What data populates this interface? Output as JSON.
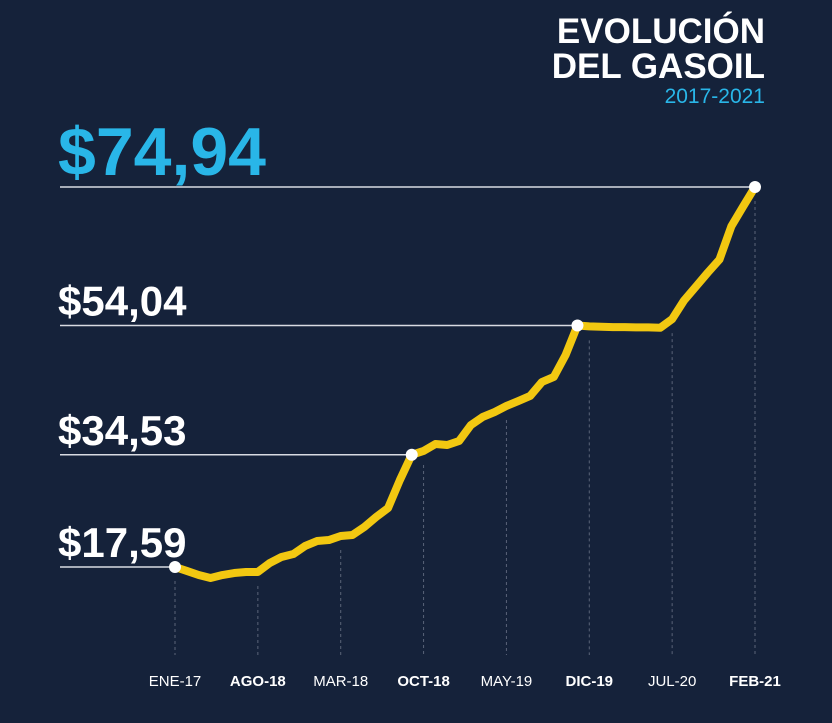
{
  "chart_data": {
    "type": "line",
    "title": [
      "EVOLUCIÓN",
      "DEL GASOIL"
    ],
    "subtitle": "2017-2021",
    "categories": [
      "ENE-17",
      null,
      null,
      null,
      null,
      null,
      null,
      "AGO-18",
      null,
      null,
      null,
      null,
      null,
      null,
      "MAR-18",
      null,
      null,
      null,
      null,
      null,
      null,
      "OCT-18",
      null,
      null,
      null,
      null,
      null,
      null,
      "MAY-19",
      null,
      null,
      null,
      null,
      null,
      null,
      "DIC-19",
      null,
      null,
      null,
      null,
      null,
      null,
      "JUL-20",
      null,
      null,
      null,
      null,
      null,
      null,
      "FEB-21"
    ],
    "series": [
      {
        "name": null,
        "color": "#f2c811",
        "values": [
          17.59,
          16.99,
          16.38,
          15.93,
          16.38,
          16.68,
          16.84,
          16.84,
          18.19,
          19.1,
          19.55,
          20.76,
          21.51,
          21.66,
          22.27,
          22.42,
          23.63,
          25.14,
          26.49,
          30.72,
          34.53,
          35.1,
          36.15,
          36.0,
          36.61,
          39.02,
          40.23,
          40.98,
          41.89,
          42.64,
          43.4,
          45.51,
          46.27,
          49.59,
          54.04,
          53.9,
          53.85,
          53.8,
          53.8,
          53.75,
          53.75,
          53.7,
          55.0,
          57.8,
          59.9,
          62.0,
          64.0,
          69.0,
          72.0,
          74.94
        ],
        "value_labels": [
          "$17,59",
          null,
          null,
          null,
          null,
          null,
          null,
          null,
          null,
          null,
          null,
          null,
          null,
          null,
          null,
          null,
          null,
          null,
          null,
          null,
          "$34,53",
          null,
          null,
          null,
          null,
          null,
          null,
          null,
          null,
          null,
          null,
          null,
          null,
          null,
          "$54,04",
          null,
          null,
          null,
          null,
          null,
          null,
          null,
          null,
          null,
          null,
          null,
          null,
          null,
          null,
          "$74,94"
        ]
      }
    ],
    "highlight_color": "#29b6e8",
    "background": "#15223a"
  }
}
